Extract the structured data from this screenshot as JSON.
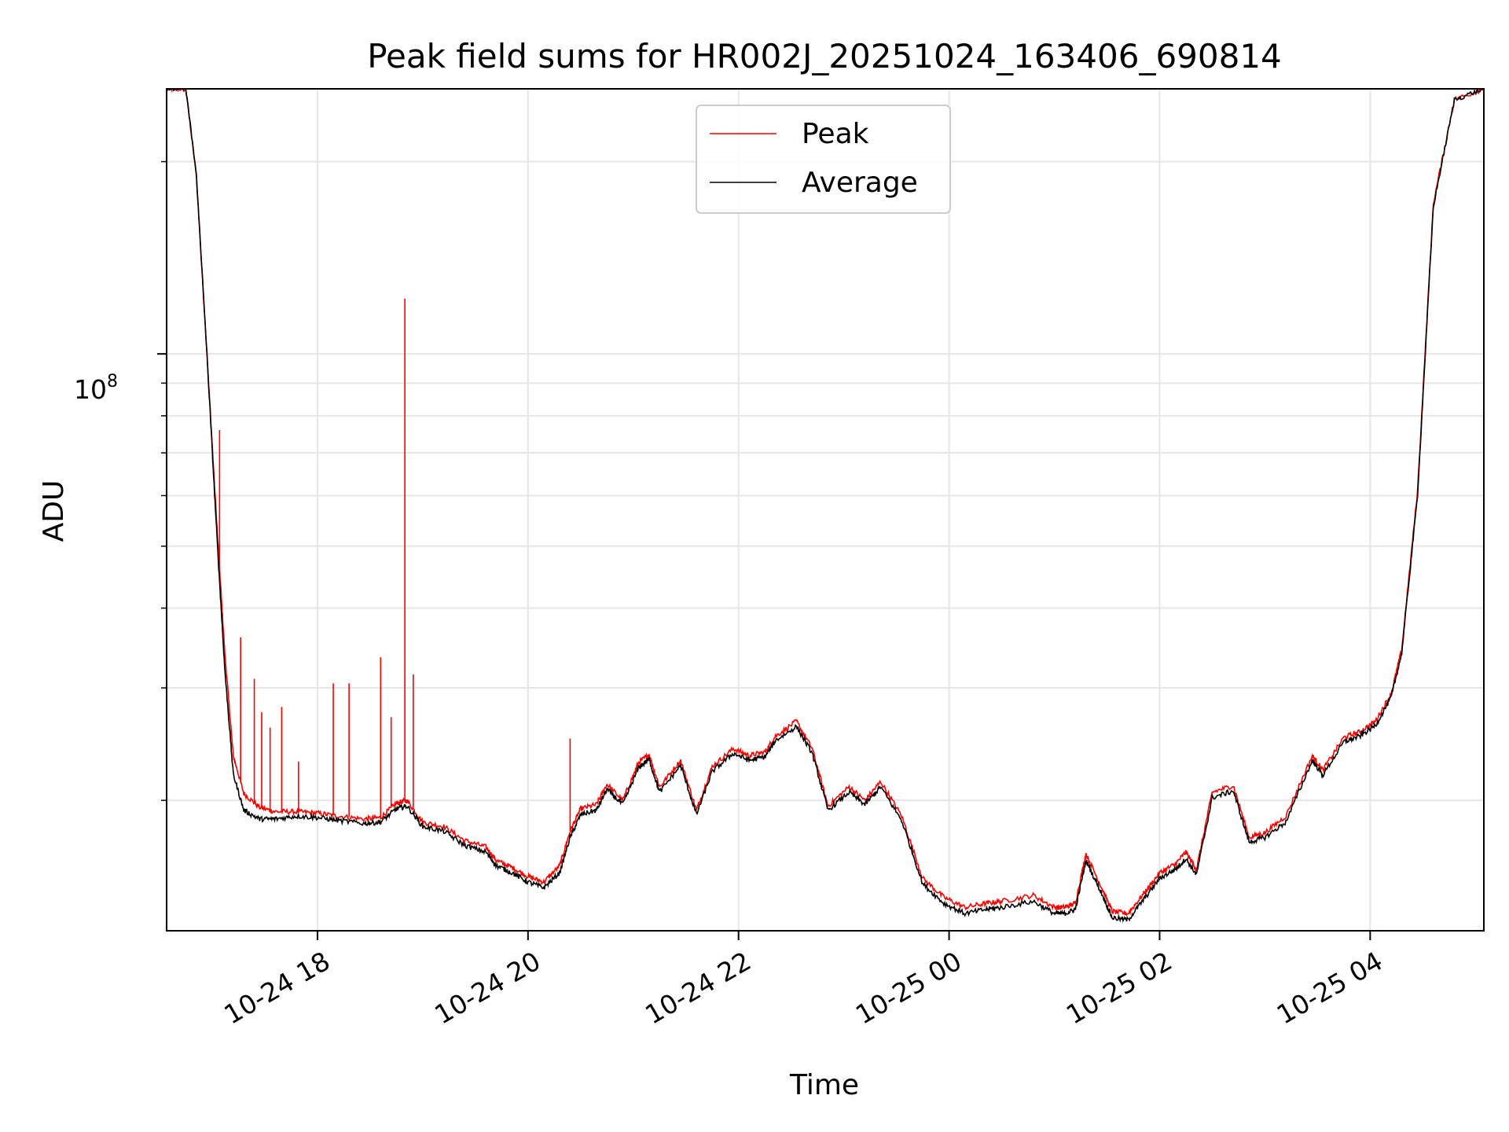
{
  "chart_data": {
    "type": "line",
    "title": "Peak field sums for HR002J_20251024_163406_690814",
    "xlabel": "Time",
    "ylabel": "ADU",
    "y_scale": "log",
    "grid": true,
    "grid_minor": true,
    "legend_position": "top-center",
    "x_ticks": [
      {
        "hour": 18,
        "label": "10-24 18"
      },
      {
        "hour": 20,
        "label": "10-24 20"
      },
      {
        "hour": 22,
        "label": "10-24 22"
      },
      {
        "hour": 24,
        "label": "10-25 00"
      },
      {
        "hour": 26,
        "label": "10-25 02"
      },
      {
        "hour": 28,
        "label": "10-25 04"
      }
    ],
    "y_tick_major": {
      "value": 100000000,
      "base": "10",
      "exponent": "8"
    },
    "y_minor_ticks": [
      20000000,
      30000000,
      40000000,
      50000000,
      60000000,
      70000000,
      80000000,
      90000000,
      200000000
    ],
    "xlim_hours": [
      16.567,
      29.08
    ],
    "ylim": [
      12500000,
      260000000
    ],
    "x_unit": "hours since 2025-10-24 00:00",
    "series": [
      {
        "name": "Average",
        "color": "#000000",
        "x": [
          16.567,
          16.75,
          16.85,
          16.95,
          17.05,
          17.12,
          17.2,
          17.3,
          17.45,
          17.6,
          17.8,
          18.0,
          18.2,
          18.45,
          18.6,
          18.75,
          18.85,
          19.0,
          19.2,
          19.4,
          19.6,
          19.7,
          19.85,
          20.0,
          20.15,
          20.3,
          20.4,
          20.5,
          20.65,
          20.75,
          20.9,
          21.05,
          21.15,
          21.25,
          21.45,
          21.6,
          21.75,
          21.95,
          22.1,
          22.25,
          22.35,
          22.55,
          22.7,
          22.85,
          23.05,
          23.2,
          23.35,
          23.55,
          23.75,
          23.95,
          24.15,
          24.35,
          24.5,
          24.8,
          25.0,
          25.1,
          25.2,
          25.3,
          25.45,
          25.55,
          25.7,
          25.85,
          26.0,
          26.15,
          26.25,
          26.35,
          26.5,
          26.7,
          26.85,
          27.0,
          27.2,
          27.45,
          27.55,
          27.75,
          27.9,
          28.05,
          28.2,
          28.3,
          28.45,
          28.6,
          28.8,
          29.08
        ],
        "y": [
          260000000,
          260000000,
          190000000,
          100000000,
          50000000,
          32000000,
          22000000,
          19300000,
          18700000,
          18700000,
          18900000,
          18800000,
          18600000,
          18400000,
          18500000,
          19400000,
          19600000,
          18200000,
          17900000,
          17000000,
          16600000,
          15800000,
          15400000,
          14900000,
          14600000,
          15400000,
          17500000,
          19000000,
          19300000,
          20800000,
          19700000,
          22500000,
          23200000,
          20600000,
          22700000,
          19000000,
          22200000,
          23700000,
          23100000,
          23400000,
          24800000,
          26100000,
          23700000,
          19300000,
          20600000,
          19700000,
          21000000,
          18600000,
          14800000,
          13800000,
          13300000,
          13500000,
          13600000,
          13900000,
          13300000,
          13300000,
          13500000,
          16100000,
          14300000,
          13100000,
          13000000,
          14000000,
          15100000,
          15600000,
          16200000,
          15300000,
          20200000,
          20700000,
          17200000,
          17500000,
          18500000,
          23100000,
          21900000,
          24700000,
          25200000,
          26200000,
          29000000,
          34000000,
          60000000,
          170000000,
          250000000,
          260000000
        ]
      },
      {
        "name": "Peak",
        "color": "#ff0000",
        "x": [
          16.567,
          16.75,
          16.85,
          16.95,
          17.05,
          17.12,
          17.2,
          17.3,
          17.45,
          17.6,
          17.8,
          18.0,
          18.2,
          18.45,
          18.6,
          18.75,
          18.85,
          19.0,
          19.2,
          19.4,
          19.6,
          19.7,
          19.85,
          20.0,
          20.15,
          20.3,
          20.4,
          20.5,
          20.65,
          20.75,
          20.9,
          21.05,
          21.15,
          21.25,
          21.45,
          21.6,
          21.75,
          21.95,
          22.1,
          22.25,
          22.35,
          22.55,
          22.7,
          22.85,
          23.05,
          23.2,
          23.35,
          23.55,
          23.75,
          23.95,
          24.15,
          24.35,
          24.5,
          24.8,
          25.0,
          25.1,
          25.2,
          25.3,
          25.45,
          25.55,
          25.7,
          25.85,
          26.0,
          26.15,
          26.25,
          26.35,
          26.5,
          26.7,
          26.85,
          27.0,
          27.2,
          27.45,
          27.55,
          27.75,
          27.9,
          28.05,
          28.2,
          28.3,
          28.45,
          28.6,
          28.8,
          29.08
        ],
        "y": [
          260000000,
          260000000,
          190000000,
          100000000,
          52000000,
          34000000,
          23500000,
          20500000,
          19500000,
          19200000,
          19200000,
          19100000,
          18900000,
          18700000,
          18800000,
          19800000,
          20000000,
          18500000,
          18200000,
          17300000,
          16900000,
          16100000,
          15700000,
          15200000,
          14900000,
          15800000,
          17900000,
          19400000,
          19700000,
          21200000,
          20000000,
          22900000,
          23600000,
          21000000,
          23100000,
          19300000,
          22600000,
          24100000,
          23500000,
          23800000,
          25200000,
          26600000,
          24100000,
          19600000,
          21000000,
          20000000,
          21400000,
          18900000,
          15100000,
          14100000,
          13600000,
          13800000,
          13900000,
          14200000,
          13600000,
          13600000,
          13800000,
          16500000,
          14600000,
          13400000,
          13300000,
          14300000,
          15400000,
          15900000,
          16600000,
          15600000,
          20600000,
          21100000,
          17500000,
          17800000,
          18900000,
          23500000,
          22300000,
          25100000,
          25600000,
          26600000,
          29400000,
          34500000,
          61000000,
          172000000,
          250000000,
          260000000
        ],
        "spikes": [
          {
            "x": 17.07,
            "y": 76000000
          },
          {
            "x": 17.27,
            "y": 36000000
          },
          {
            "x": 17.4,
            "y": 31000000
          },
          {
            "x": 17.47,
            "y": 27500000
          },
          {
            "x": 17.55,
            "y": 26000000
          },
          {
            "x": 17.66,
            "y": 28000000
          },
          {
            "x": 17.82,
            "y": 23000000
          },
          {
            "x": 18.15,
            "y": 30500000
          },
          {
            "x": 18.3,
            "y": 30500000
          },
          {
            "x": 18.6,
            "y": 33500000
          },
          {
            "x": 18.7,
            "y": 27000000
          },
          {
            "x": 18.83,
            "y": 122000000
          },
          {
            "x": 18.91,
            "y": 31500000
          },
          {
            "x": 20.4,
            "y": 25000000
          }
        ]
      }
    ]
  }
}
